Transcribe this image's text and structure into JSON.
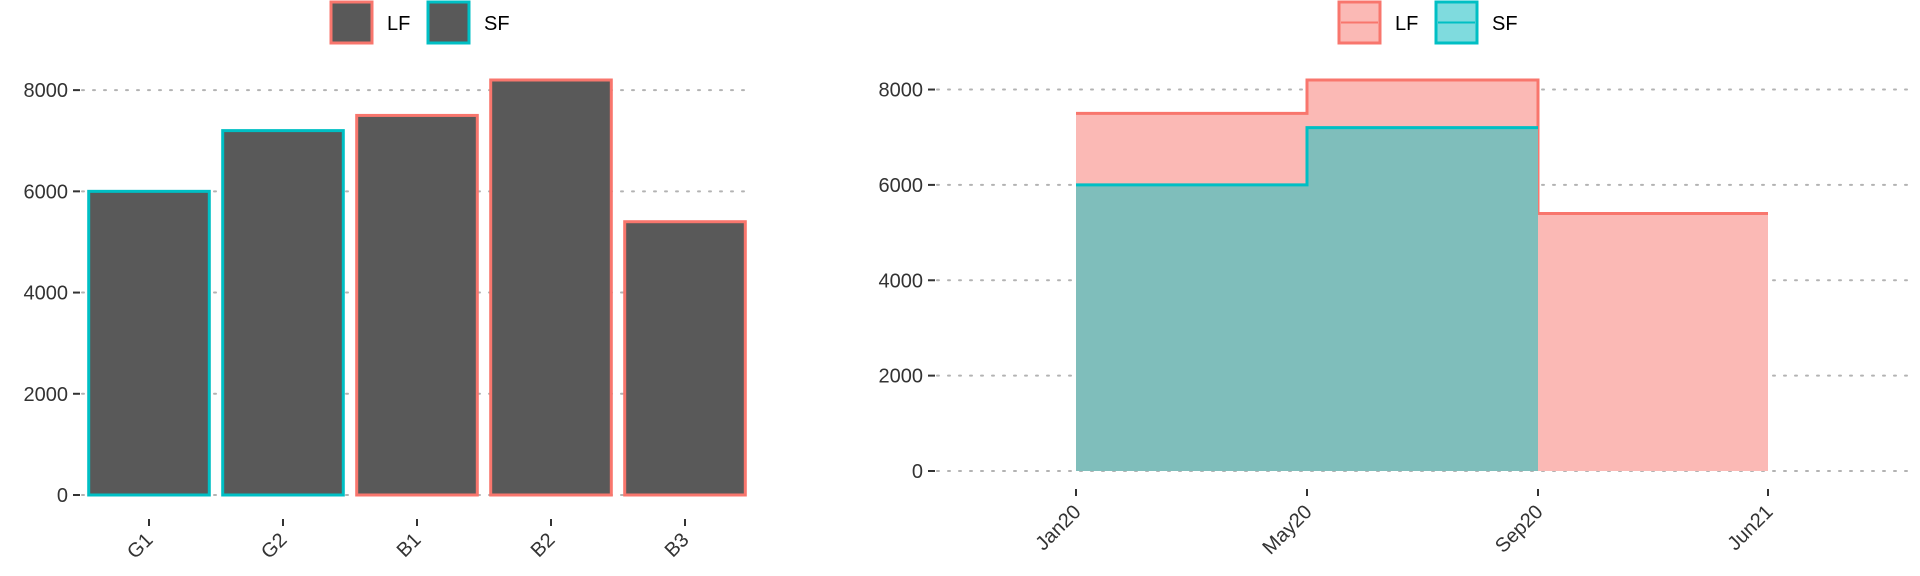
{
  "chart_data": [
    {
      "type": "bar",
      "categories": [
        "G1",
        "G2",
        "B1",
        "B2",
        "B3"
      ],
      "values": [
        6000,
        7200,
        7500,
        8200,
        5400
      ],
      "groups": [
        "SF",
        "SF",
        "LF",
        "LF",
        "LF"
      ],
      "fill_color": "#595959",
      "ylim": [
        0,
        8200
      ],
      "yticks": [
        0,
        2000,
        4000,
        6000,
        8000
      ],
      "ytick_labels": [
        "0",
        "2000",
        "4000",
        "6000",
        "8000"
      ],
      "grid": "horizontal dotted",
      "legend": {
        "position": "top",
        "entries": [
          {
            "label": "LF",
            "color": "#F8766D"
          },
          {
            "label": "SF",
            "color": "#00BFC4"
          }
        ]
      }
    },
    {
      "type": "area",
      "step": true,
      "x": [
        "Jan20",
        "May20",
        "Sep20",
        "Jun21"
      ],
      "series": [
        {
          "name": "LF",
          "values": [
            7500,
            8200,
            5400,
            5400
          ],
          "color": "#F8766D",
          "fill": "#FBB9B5"
        },
        {
          "name": "SF",
          "values": [
            6000,
            7200,
            null,
            null
          ],
          "color": "#00BFC4",
          "fill": "#7FBEBB"
        }
      ],
      "ylim": [
        0,
        8200
      ],
      "yticks": [
        0,
        2000,
        4000,
        6000,
        8000
      ],
      "ytick_labels": [
        "0",
        "2000",
        "4000",
        "6000",
        "8000"
      ],
      "grid": "horizontal dotted",
      "legend": {
        "position": "top",
        "entries": [
          {
            "label": "LF",
            "color": "#F8766D",
            "fill": "#FBB9B5"
          },
          {
            "label": "SF",
            "color": "#00BFC4",
            "fill": "#7FDBDE"
          }
        ]
      }
    }
  ]
}
